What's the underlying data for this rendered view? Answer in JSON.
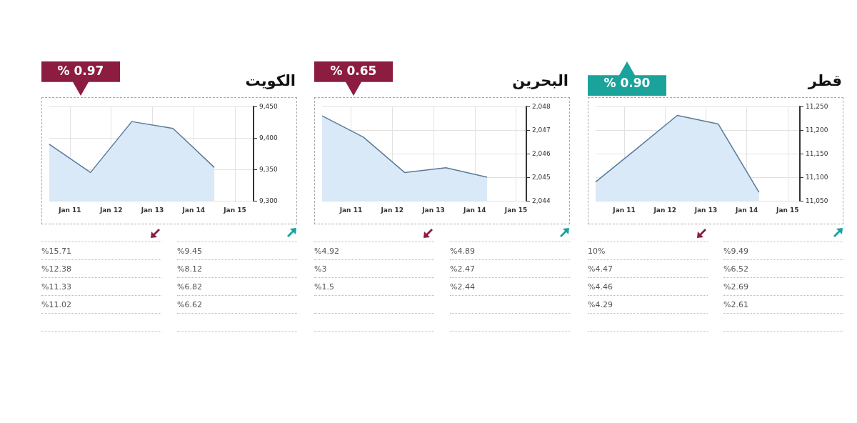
{
  "chart_data": [
    {
      "type": "area",
      "title": "الكويت",
      "annotations": [
        "% 0.97"
      ],
      "x": [
        "--01-10T12:00",
        "--01-11T12:00",
        "--01-12T12:00",
        "--01-13T12:00",
        "--01-14T12:00"
      ],
      "xlim": [
        "--01-10T12:00",
        "--01-15T10:48"
      ],
      "xticks": [
        {
          "value": "--01-11",
          "label": "Jan 11"
        },
        {
          "value": "--01-12",
          "label": "Jan 12"
        },
        {
          "value": "--01-13",
          "label": "Jan 13"
        },
        {
          "value": "--01-14",
          "label": "Jan 14"
        },
        {
          "value": "--01-15",
          "label": "Jan 15"
        }
      ],
      "ylim": [
        9300,
        9450
      ],
      "yticks": [
        {
          "value": 9300,
          "label": "9,300"
        },
        {
          "value": 9350,
          "label": "9,350"
        },
        {
          "value": 9400,
          "label": "9,400"
        },
        {
          "value": 9450,
          "label": "9,450"
        }
      ],
      "grid": true,
      "series": [
        {
          "color": "#5a7a98",
          "values": [
            9390,
            9345,
            9426,
            9415,
            9353
          ]
        }
      ]
    },
    {
      "type": "other",
      "annotations": [
        "%15.71",
        "%12.38",
        "%11.33",
        "%11.02"
      ]
    },
    {
      "type": "other",
      "annotations": [
        "%9.45",
        "%8.12",
        "%6.82",
        "%6.62"
      ]
    },
    {
      "type": "area",
      "title": "البحرين",
      "annotations": [
        "% 0.65"
      ],
      "x": [
        "--01-10T07:12",
        "--01-11T07:12",
        "--01-12T07:12",
        "--01-13T07:12",
        "--01-14T07:12"
      ],
      "xlim": [
        "--01-10T07:12",
        "--01-15T06:00"
      ],
      "xticks": [
        {
          "value": "--01-11",
          "label": "Jan 11"
        },
        {
          "value": "--01-12",
          "label": "Jan 12"
        },
        {
          "value": "--01-13",
          "label": "Jan 13"
        },
        {
          "value": "--01-14",
          "label": "Jan 14"
        },
        {
          "value": "--01-15",
          "label": "Jan 15"
        }
      ],
      "ylim": [
        2044,
        2048
      ],
      "yticks": [
        {
          "value": 2044,
          "label": "2,044"
        },
        {
          "value": 2045,
          "label": "2,045"
        },
        {
          "value": 2046,
          "label": "2,046"
        },
        {
          "value": 2047,
          "label": "2,047"
        },
        {
          "value": 2048,
          "label": "2,048"
        }
      ],
      "grid": true,
      "series": [
        {
          "color": "#5a7a98",
          "values": [
            2047.6,
            2046.7,
            2045.2,
            2045.4,
            2045.0
          ]
        }
      ]
    },
    {
      "type": "other",
      "annotations": [
        "%4.92",
        "%3",
        "%1.5"
      ]
    },
    {
      "type": "other",
      "annotations": [
        "%4.89",
        "%2.47",
        "%2.44"
      ]
    },
    {
      "type": "area",
      "title": "قطر",
      "annotations": [
        "% 0.90"
      ],
      "x": [
        "--01-10T07:12",
        "--01-11T07:12",
        "--01-12T07:12",
        "--01-13T07:12",
        "--01-14T07:12"
      ],
      "xlim": [
        "--01-10T07:12",
        "--01-15T07:12"
      ],
      "xticks": [
        {
          "value": "--01-11",
          "label": "Jan 11"
        },
        {
          "value": "--01-12",
          "label": "Jan 12"
        },
        {
          "value": "--01-13",
          "label": "Jan 13"
        },
        {
          "value": "--01-14",
          "label": "Jan 14"
        },
        {
          "value": "--01-15",
          "label": "Jan 15"
        }
      ],
      "ylim": [
        11050,
        11250
      ],
      "yticks": [
        {
          "value": 11050,
          "label": "11,050"
        },
        {
          "value": 11100,
          "label": "11,100"
        },
        {
          "value": 11150,
          "label": "11,150"
        },
        {
          "value": 11200,
          "label": "11,200"
        },
        {
          "value": 11250,
          "label": "11,250"
        }
      ],
      "grid": true,
      "series": [
        {
          "color": "#5a7a98",
          "values": [
            11090,
            11160,
            11231,
            11213,
            11068
          ]
        }
      ]
    },
    {
      "type": "other",
      "annotations": [
        "10%",
        "%4.47",
        "%4.46",
        "%4.29"
      ]
    },
    {
      "type": "other",
      "annotations": [
        "%9.49",
        "%6.52",
        "%2.69",
        "%2.61"
      ]
    }
  ]
}
